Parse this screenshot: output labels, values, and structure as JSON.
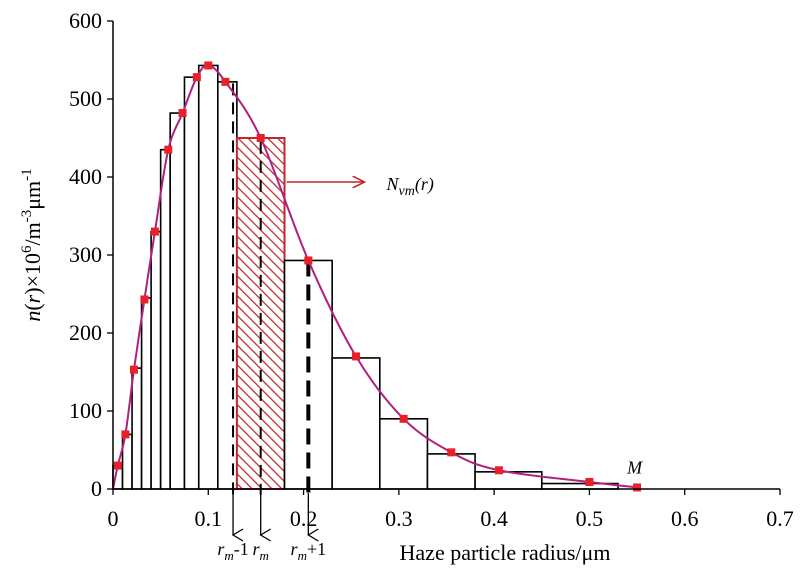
{
  "chart_data": {
    "type": "bar",
    "title": "",
    "xlabel": "Haze particle radius/μm",
    "ylabel_parts": {
      "prefix": "n",
      "var": "r",
      "mid": "×10",
      "sup1": "6",
      "after1": "/m",
      "sup2": "-3",
      "after2": "μm",
      "sup3": "-1"
    },
    "xlim": [
      0,
      0.7
    ],
    "ylim": [
      0,
      600
    ],
    "xticks": [
      0,
      0.1,
      0.2,
      0.3,
      0.4,
      0.5,
      0.6,
      0.7
    ],
    "xtick_labels": [
      "0",
      "0.1",
      "0.2",
      "0.3",
      "0.4",
      "0.5",
      "0.6",
      "0.7"
    ],
    "yticks": [
      0,
      100,
      200,
      300,
      400,
      500,
      600
    ],
    "ytick_labels": [
      "0",
      "100",
      "200",
      "300",
      "400",
      "500",
      "600"
    ],
    "bars": [
      {
        "x0": 0.0,
        "x1": 0.01,
        "h": 30
      },
      {
        "x0": 0.01,
        "x1": 0.02,
        "h": 70
      },
      {
        "x0": 0.02,
        "x1": 0.03,
        "h": 155
      },
      {
        "x0": 0.03,
        "x1": 0.04,
        "h": 245
      },
      {
        "x0": 0.04,
        "x1": 0.05,
        "h": 330
      },
      {
        "x0": 0.05,
        "x1": 0.06,
        "h": 435
      },
      {
        "x0": 0.06,
        "x1": 0.075,
        "h": 482
      },
      {
        "x0": 0.075,
        "x1": 0.09,
        "h": 528
      },
      {
        "x0": 0.09,
        "x1": 0.11,
        "h": 543
      },
      {
        "x0": 0.11,
        "x1": 0.13,
        "h": 522
      },
      {
        "x0": 0.13,
        "x1": 0.18,
        "h": 450,
        "highlight": true
      },
      {
        "x0": 0.18,
        "x1": 0.23,
        "h": 293
      },
      {
        "x0": 0.23,
        "x1": 0.28,
        "h": 168
      },
      {
        "x0": 0.28,
        "x1": 0.33,
        "h": 90
      },
      {
        "x0": 0.33,
        "x1": 0.38,
        "h": 45
      },
      {
        "x0": 0.38,
        "x1": 0.45,
        "h": 22
      },
      {
        "x0": 0.45,
        "x1": 0.53,
        "h": 7
      }
    ],
    "curve": {
      "points": [
        {
          "x": 0.0,
          "y": 0
        },
        {
          "x": 0.005,
          "y": 30
        },
        {
          "x": 0.013,
          "y": 70
        },
        {
          "x": 0.022,
          "y": 153
        },
        {
          "x": 0.033,
          "y": 243
        },
        {
          "x": 0.044,
          "y": 330
        },
        {
          "x": 0.058,
          "y": 435
        },
        {
          "x": 0.073,
          "y": 482
        },
        {
          "x": 0.088,
          "y": 528
        },
        {
          "x": 0.1,
          "y": 543
        },
        {
          "x": 0.118,
          "y": 522
        },
        {
          "x": 0.155,
          "y": 450
        },
        {
          "x": 0.205,
          "y": 293
        },
        {
          "x": 0.255,
          "y": 170
        },
        {
          "x": 0.305,
          "y": 90
        },
        {
          "x": 0.355,
          "y": 47
        },
        {
          "x": 0.405,
          "y": 24
        },
        {
          "x": 0.5,
          "y": 9
        },
        {
          "x": 0.55,
          "y": 2
        }
      ],
      "line_color": "#b0207e",
      "marker_color": "#e8202a"
    },
    "dashed_lines": [
      {
        "x": 0.126,
        "y_top": 520,
        "weight": "thin"
      },
      {
        "x": 0.155,
        "y_top": 445,
        "weight": "thin"
      },
      {
        "x": 0.205,
        "y_top": 293,
        "weight": "thick"
      }
    ],
    "down_arrows": [
      {
        "x": 0.126,
        "label_main": "r",
        "label_sub": "m",
        "label_after": "-1"
      },
      {
        "x": 0.155,
        "label_main": "r",
        "label_sub": "m",
        "label_after": ""
      },
      {
        "x": 0.205,
        "label_main": "r",
        "label_sub": "m",
        "label_after": "+1"
      }
    ],
    "highlight_annotation": {
      "main": "N",
      "sub": "vm",
      "after": "(r)"
    },
    "end_label": "M",
    "colors": {
      "highlight": "#c0272d",
      "axis": "#000000"
    }
  }
}
